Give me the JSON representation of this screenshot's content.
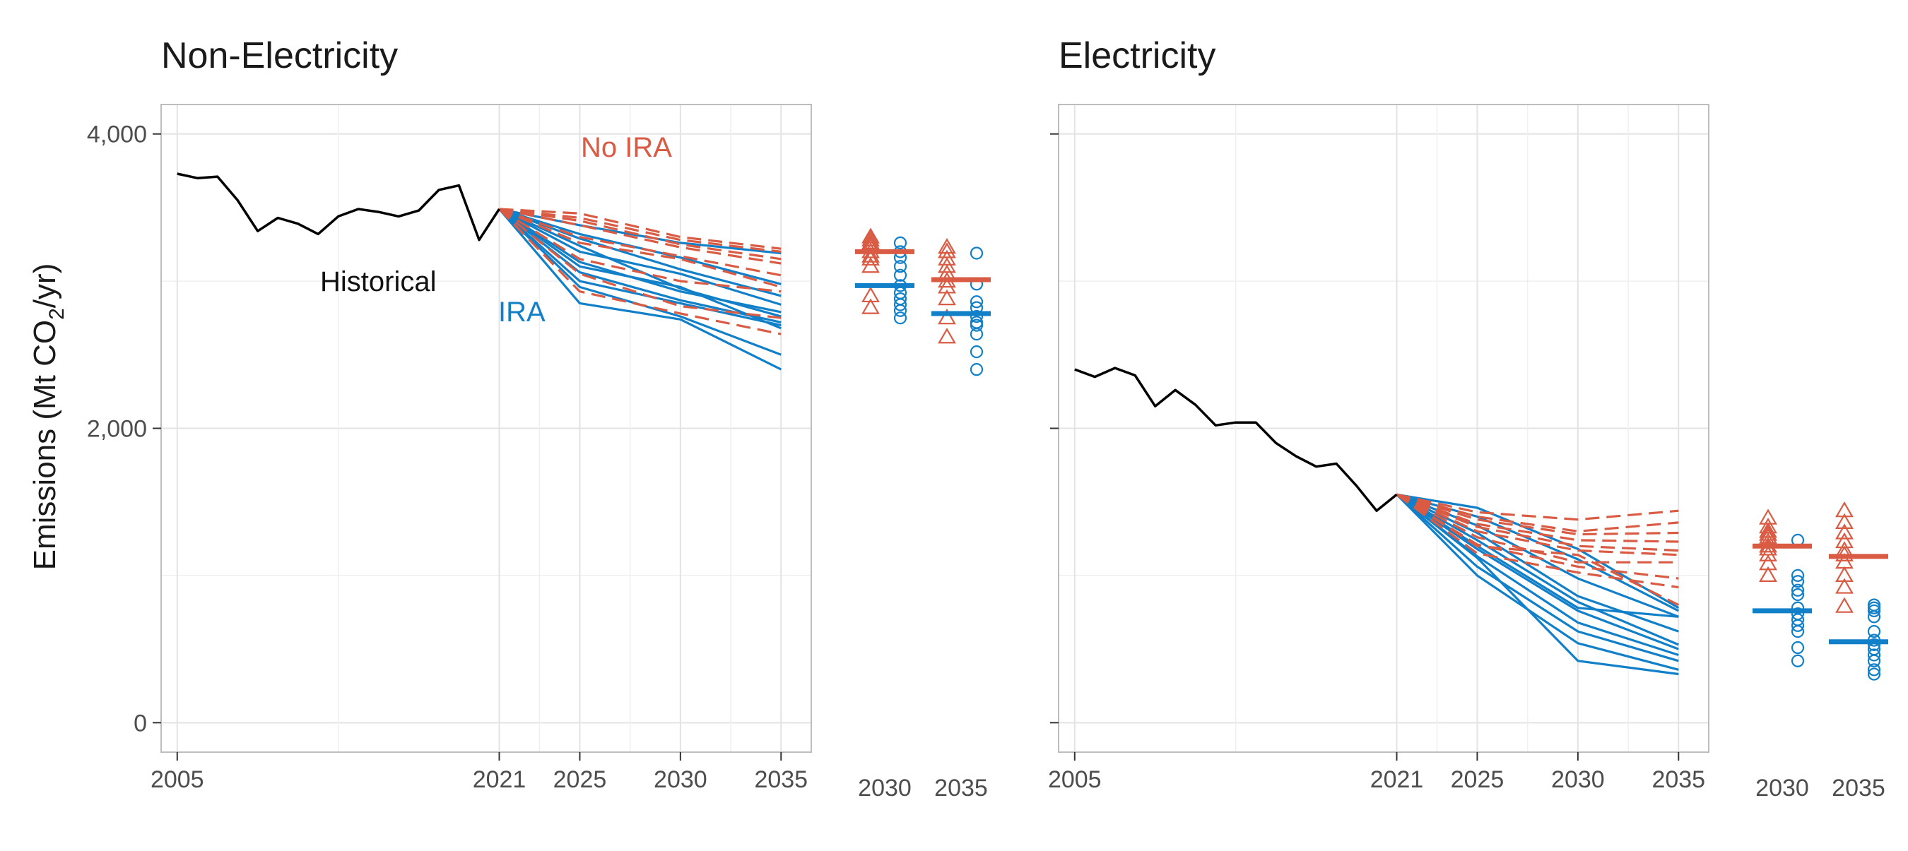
{
  "colors": {
    "historical": "#000000",
    "ira": "#1280c8",
    "no_ira": "#d95b43",
    "grid": "#e3e3e3",
    "frame": "#bdbdbd"
  },
  "y_axis": {
    "label_pre": "Emissions (Mt CO",
    "label_sub": "2",
    "label_post": "/yr)",
    "ticks": [
      0,
      2000,
      4000
    ],
    "tick_labels": [
      "0",
      "2,000",
      "4,000"
    ],
    "range": [
      -200,
      4200
    ]
  },
  "x_axis": {
    "range": [
      2004.2,
      2036.5
    ],
    "ticks": [
      2005,
      2021,
      2025,
      2030,
      2035
    ],
    "tick_labels": [
      "2005",
      "2021",
      "2025",
      "2030",
      "2035"
    ]
  },
  "chart_data": [
    {
      "type": "line",
      "title": "Non-Electricity",
      "annotations": {
        "historical": "Historical",
        "no_ira": "No IRA",
        "ira": "IRA"
      },
      "historical": {
        "x": [
          2005,
          2006,
          2007,
          2008,
          2009,
          2010,
          2011,
          2012,
          2013,
          2014,
          2015,
          2016,
          2017,
          2018,
          2019,
          2020,
          2021
        ],
        "y": [
          3730,
          3700,
          3710,
          3550,
          3340,
          3430,
          3390,
          3320,
          3440,
          3490,
          3470,
          3440,
          3480,
          3620,
          3650,
          3280,
          3490
        ]
      },
      "ira_scenarios": [
        {
          "x": [
            2021,
            2025,
            2030,
            2035
          ],
          "y": [
            3490,
            3380,
            3260,
            3190
          ]
        },
        {
          "x": [
            2021,
            2025,
            2030,
            2035
          ],
          "y": [
            3490,
            3320,
            3160,
            2980
          ]
        },
        {
          "x": [
            2021,
            2025,
            2030,
            2035
          ],
          "y": [
            3490,
            3290,
            3080,
            2900
          ]
        },
        {
          "x": [
            2021,
            2025,
            2030,
            2035
          ],
          "y": [
            3490,
            3200,
            3050,
            2840
          ]
        },
        {
          "x": [
            2021,
            2025,
            2030,
            2035
          ],
          "y": [
            3490,
            3130,
            2930,
            2790
          ]
        },
        {
          "x": [
            2021,
            2025,
            2030,
            2035
          ],
          "y": [
            3490,
            3060,
            2870,
            2720
          ]
        },
        {
          "x": [
            2021,
            2025,
            2030,
            2035
          ],
          "y": [
            3490,
            3000,
            2850,
            2700
          ]
        },
        {
          "x": [
            2021,
            2025,
            2030,
            2035
          ],
          "y": [
            3490,
            2960,
            2760,
            2500
          ]
        },
        {
          "x": [
            2021,
            2025,
            2030,
            2035
          ],
          "y": [
            3490,
            2850,
            2740,
            2400
          ]
        },
        {
          "x": [
            2021,
            2025,
            2030,
            2035
          ],
          "y": [
            3490,
            3240,
            2950,
            2760
          ]
        },
        {
          "x": [
            2021,
            2025,
            2030,
            2035
          ],
          "y": [
            3490,
            3100,
            2960,
            2680
          ]
        }
      ],
      "no_ira_scenarios": [
        {
          "x": [
            2021,
            2025,
            2030,
            2035
          ],
          "y": [
            3490,
            3460,
            3300,
            3220
          ]
        },
        {
          "x": [
            2021,
            2025,
            2030,
            2035
          ],
          "y": [
            3490,
            3430,
            3280,
            3200
          ]
        },
        {
          "x": [
            2021,
            2025,
            2030,
            2035
          ],
          "y": [
            3490,
            3410,
            3250,
            3150
          ]
        },
        {
          "x": [
            2021,
            2025,
            2030,
            2035
          ],
          "y": [
            3490,
            3380,
            3230,
            3120
          ]
        },
        {
          "x": [
            2021,
            2025,
            2030,
            2035
          ],
          "y": [
            3490,
            3300,
            3170,
            3040
          ]
        },
        {
          "x": [
            2021,
            2025,
            2030,
            2035
          ],
          "y": [
            3490,
            3260,
            3150,
            2960
          ]
        },
        {
          "x": [
            2021,
            2025,
            2030,
            2035
          ],
          "y": [
            3490,
            3150,
            3000,
            2930
          ]
        },
        {
          "x": [
            2021,
            2025,
            2030,
            2035
          ],
          "y": [
            3490,
            3050,
            2830,
            2750
          ]
        },
        {
          "x": [
            2021,
            2025,
            2030,
            2035
          ],
          "y": [
            3490,
            2930,
            2780,
            2640
          ]
        }
      ],
      "summary": {
        "categories": [
          "2030",
          "2035"
        ],
        "no_ira": [
          {
            "points": [
              3300,
              3280,
              3260,
              3250,
              3230,
              3200,
              3170,
              3150,
              3100,
              2900,
              2820
            ],
            "median": 3200
          },
          {
            "points": [
              3230,
              3200,
              3150,
              3100,
              3050,
              3000,
              2960,
              2880,
              2750,
              2620
            ],
            "median": 3010
          }
        ],
        "ira": [
          {
            "points": [
              3260,
              3200,
              3160,
              3100,
              3040,
              2970,
              2920,
              2880,
              2840,
              2800,
              2750
            ],
            "median": 2970
          },
          {
            "points": [
              3190,
              2980,
              2860,
              2820,
              2760,
              2720,
              2700,
              2640,
              2520,
              2400
            ],
            "median": 2780
          }
        ]
      }
    },
    {
      "type": "line",
      "title": "Electricity",
      "historical": {
        "x": [
          2005,
          2006,
          2007,
          2008,
          2009,
          2010,
          2011,
          2012,
          2013,
          2014,
          2015,
          2016,
          2017,
          2018,
          2019,
          2020,
          2021
        ],
        "y": [
          2400,
          2350,
          2410,
          2360,
          2150,
          2260,
          2160,
          2020,
          2040,
          2040,
          1900,
          1810,
          1740,
          1760,
          1610,
          1440,
          1550
        ]
      },
      "ira_scenarios": [
        {
          "x": [
            2021,
            2025,
            2030,
            2035
          ],
          "y": [
            1550,
            1460,
            1180,
            780
          ]
        },
        {
          "x": [
            2021,
            2025,
            2030,
            2035
          ],
          "y": [
            1550,
            1400,
            1110,
            760
          ]
        },
        {
          "x": [
            2021,
            2025,
            2030,
            2035
          ],
          "y": [
            1550,
            1340,
            980,
            720
          ]
        },
        {
          "x": [
            2021,
            2025,
            2030,
            2035
          ],
          "y": [
            1550,
            1290,
            860,
            620
          ]
        },
        {
          "x": [
            2021,
            2025,
            2030,
            2035
          ],
          "y": [
            1550,
            1240,
            820,
            530
          ]
        },
        {
          "x": [
            2021,
            2025,
            2030,
            2035
          ],
          "y": [
            1550,
            1180,
            760,
            500
          ]
        },
        {
          "x": [
            2021,
            2025,
            2030,
            2035
          ],
          "y": [
            1550,
            1130,
            680,
            460
          ]
        },
        {
          "x": [
            2021,
            2025,
            2030,
            2035
          ],
          "y": [
            1550,
            1060,
            620,
            420
          ]
        },
        {
          "x": [
            2021,
            2025,
            2030,
            2035
          ],
          "y": [
            1550,
            1000,
            540,
            360
          ]
        },
        {
          "x": [
            2021,
            2025,
            2030,
            2035
          ],
          "y": [
            1550,
            1120,
            420,
            330
          ]
        },
        {
          "x": [
            2021,
            2025,
            2030,
            2035
          ],
          "y": [
            1550,
            1200,
            780,
            720
          ]
        }
      ],
      "no_ira_scenarios": [
        {
          "x": [
            2021,
            2025,
            2030,
            2035
          ],
          "y": [
            1550,
            1430,
            1380,
            1440
          ]
        },
        {
          "x": [
            2021,
            2025,
            2030,
            2035
          ],
          "y": [
            1550,
            1400,
            1300,
            1360
          ]
        },
        {
          "x": [
            2021,
            2025,
            2030,
            2035
          ],
          "y": [
            1550,
            1380,
            1280,
            1290
          ]
        },
        {
          "x": [
            2021,
            2025,
            2030,
            2035
          ],
          "y": [
            1550,
            1350,
            1240,
            1230
          ]
        },
        {
          "x": [
            2021,
            2025,
            2030,
            2035
          ],
          "y": [
            1550,
            1330,
            1200,
            1170
          ]
        },
        {
          "x": [
            2021,
            2025,
            2030,
            2035
          ],
          "y": [
            1550,
            1300,
            1170,
            1140
          ]
        },
        {
          "x": [
            2021,
            2025,
            2030,
            2035
          ],
          "y": [
            1550,
            1260,
            1090,
            1090
          ]
        },
        {
          "x": [
            2021,
            2025,
            2030,
            2035
          ],
          "y": [
            1550,
            1210,
            1060,
            980
          ]
        },
        {
          "x": [
            2021,
            2025,
            2030,
            2035
          ],
          "y": [
            1550,
            1150,
            1020,
            920
          ]
        },
        {
          "x": [
            2021,
            2025,
            2030,
            2035
          ],
          "y": [
            1550,
            1200,
            1140,
            800
          ]
        }
      ],
      "summary": {
        "categories": [
          "2030",
          "2035"
        ],
        "no_ira": [
          {
            "points": [
              1390,
              1330,
              1300,
              1280,
              1260,
              1230,
              1200,
              1180,
              1140,
              1080,
              1000
            ],
            "median": 1200
          },
          {
            "points": [
              1440,
              1360,
              1290,
              1230,
              1170,
              1140,
              1090,
              1000,
              920,
              790
            ],
            "median": 1130
          }
        ],
        "ira": [
          {
            "points": [
              1240,
              1000,
              960,
              900,
              870,
              780,
              740,
              700,
              660,
              620,
              510,
              420
            ],
            "median": 760
          },
          {
            "points": [
              800,
              780,
              760,
              720,
              620,
              560,
              530,
              500,
              460,
              420,
              360,
              330
            ],
            "median": 550
          }
        ]
      }
    }
  ]
}
